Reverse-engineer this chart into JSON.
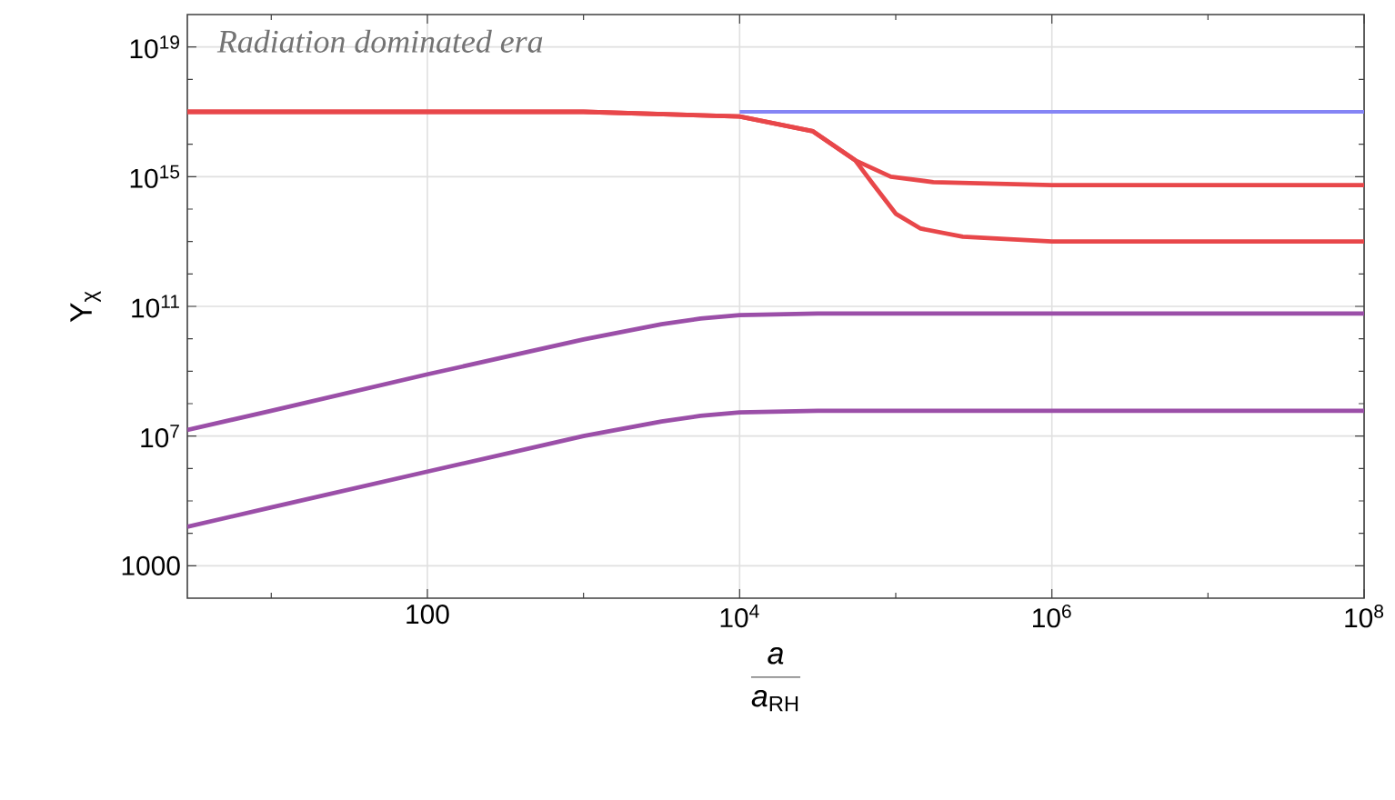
{
  "chart_data": {
    "type": "line",
    "xlabel": "\\frac{\\mathit{a}}{\\mathit{a}_{\\mathrm{RH}}}",
    "ylabel": "Y$_{χ}$",
    "log": "xy",
    "grid": true,
    "xlim": [
      2.9,
      100000000
    ],
    "ylim": [
      100,
      1e+20
    ],
    "xticks": [
      {
        "value": 10,
        "label": null
      },
      100,
      {
        "value": 1000,
        "label": null
      },
      {
        "value": 10000,
        "label": "10$^{4}$"
      },
      {
        "value": 100000,
        "label": null
      },
      {
        "value": 1000000,
        "label": "10$^{6}$"
      },
      {
        "value": 10000000,
        "label": null
      },
      {
        "value": 100000000,
        "label": "10$^{8}$"
      }
    ],
    "yticks": [
      1000,
      {
        "value": 10000,
        "label": null
      },
      {
        "value": 100000,
        "label": null
      },
      {
        "value": 1000000,
        "label": null
      },
      {
        "value": 10000000.0,
        "label": "10$^{7}$"
      },
      {
        "value": 100000000.0,
        "label": null
      },
      {
        "value": 1000000000.0,
        "label": null
      },
      {
        "value": 10000000000.0,
        "label": null
      },
      {
        "value": 100000000000.0,
        "label": "10$^{11}$"
      },
      {
        "value": 1000000000000.0,
        "label": null
      },
      {
        "value": 10000000000000.0,
        "label": null
      },
      {
        "value": 100000000000000.0,
        "label": null
      },
      {
        "value": 1000000000000000.0,
        "label": "10$^{15}$"
      },
      {
        "value": 1e+16,
        "label": null
      },
      {
        "value": 1e+17,
        "label": null
      },
      {
        "value": 1e+18,
        "label": null
      },
      {
        "value": 1e+19,
        "label": "10$^{19}$"
      }
    ],
    "annotations": [
      "Radiation dominated era"
    ],
    "series": [
      {
        "color": "#8585f5",
        "x": [
          10000,
          100000000
        ],
        "values": [
          1e+17,
          1e+17
        ]
      },
      {
        "color": "#e8474a",
        "x": [
          2.9,
          1000,
          10000,
          29500,
          55000,
          93000,
          174000,
          1000000,
          100000000
        ],
        "values": [
          1e+17,
          1e+17,
          7.2e+16,
          2.5e+16,
          3200000000000000.0,
          1000000000000000.0,
          680000000000000.0,
          550000000000000.0,
          550000000000000.0
        ]
      },
      {
        "color": "#e8474a",
        "x": [
          2.9,
          1000,
          10000,
          29500,
          55000,
          70800,
          100000,
          144500,
          269000,
          1000000,
          100000000
        ],
        "values": [
          1e+17,
          1e+17,
          7.2e+16,
          2.5e+16,
          3200000000000000.0,
          630000000000000.0,
          72000000000000.0,
          25000000000000.0,
          14000000000000.0,
          10000000000000.0,
          10000000000000.0
        ]
      },
      {
        "color": "#9b4fa8",
        "x": [
          2.9,
          10,
          100,
          1000,
          3162,
          5623,
          10000,
          31623,
          100000000
        ],
        "values": [
          15500000.0,
          60000000.0,
          800000000.0,
          9500000000.0,
          28000000000.0,
          42000000000.0,
          54000000000.0,
          60000000000.0,
          60000000000.0
        ]
      },
      {
        "color": "#9b4fa8",
        "x": [
          2.9,
          10,
          100,
          1000,
          3162,
          5623,
          10000,
          31623,
          100000000
        ],
        "values": [
          16000.0,
          63000.0,
          800000.0,
          10000000.0,
          28000000.0,
          42000000.0,
          54000000.0,
          60000000.0,
          60000000.0
        ]
      }
    ]
  }
}
